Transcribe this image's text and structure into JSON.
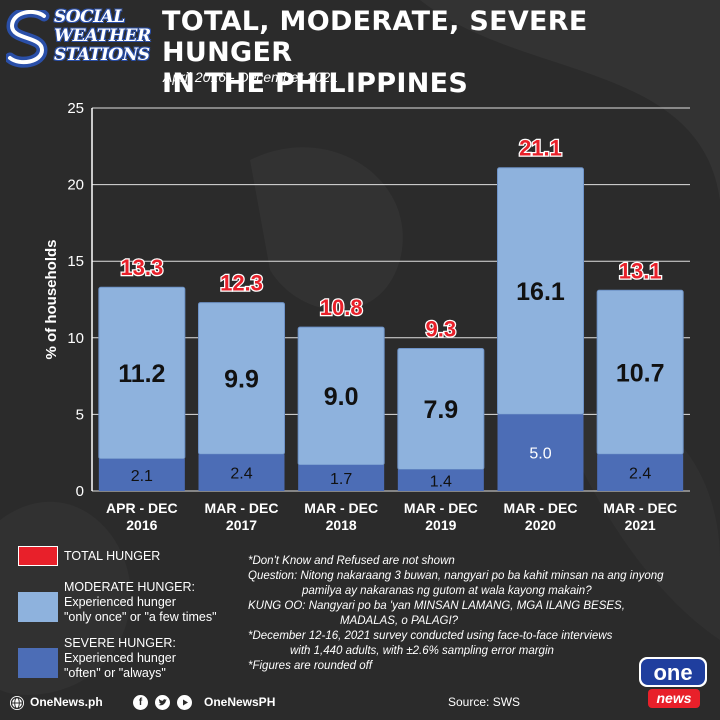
{
  "header": {
    "logo_lines": [
      "SOCIAL",
      "WEATHER",
      "STATIONS"
    ],
    "title_line1": "TOTAL, MODERATE, SEVERE HUNGER",
    "title_line2": "IN THE PHILIPPINES",
    "subtitle": "April 2016 - December 2021"
  },
  "colors": {
    "total": "#e8202a",
    "moderate": "#8eb2dd",
    "severe": "#4c6db6",
    "background": "#2b2b2b",
    "grid": "#ffffff"
  },
  "chart_data": {
    "type": "bar",
    "stacked": true,
    "categories": [
      [
        "APR - DEC",
        "2016"
      ],
      [
        "MAR - DEC",
        "2017"
      ],
      [
        "MAR - DEC",
        "2018"
      ],
      [
        "MAR - DEC",
        "2019"
      ],
      [
        "MAR - DEC",
        "2020"
      ],
      [
        "MAR - DEC",
        "2021"
      ]
    ],
    "series": [
      {
        "name": "SEVERE HUNGER",
        "values": [
          2.1,
          2.4,
          1.7,
          1.4,
          5.0,
          2.4
        ],
        "labels": [
          "2.1",
          "2.4",
          "1.7",
          "1.4",
          "5.0",
          "2.4"
        ]
      },
      {
        "name": "MODERATE HUNGER",
        "values": [
          11.2,
          9.9,
          9.0,
          7.9,
          16.1,
          10.7
        ],
        "labels": [
          "11.2",
          "9.9",
          "9.0",
          "7.9",
          "16.1",
          "10.7"
        ]
      }
    ],
    "totals": [
      "13.3",
      "12.3",
      "10.8",
      "9.3",
      "21.1",
      "13.1"
    ],
    "total_values": [
      13.3,
      12.3,
      10.8,
      9.3,
      21.1,
      13.1
    ],
    "ylabel": "% of households",
    "ylim": [
      0,
      25
    ],
    "yticks": [
      "0",
      "5",
      "10",
      "15",
      "20",
      "25"
    ],
    "grid": true,
    "legend": "bottom-left"
  },
  "legend": {
    "total_label": "TOTAL HUNGER",
    "moderate_lines": [
      "MODERATE HUNGER:",
      "Experienced hunger",
      "\"only once\" or \"a few times\""
    ],
    "severe_lines": [
      "SEVERE HUNGER:",
      "Experienced hunger",
      "\"often\" or \"always\""
    ]
  },
  "notes": [
    "*Don't Know and Refused are not shown",
    "Question: Nitong nakaraang 3 buwan, nangyari po ba kahit minsan na ang inyong",
    "pamilya ay nakaranas ng gutom at wala kayong makain?",
    "KUNG OO: Nangyari po ba 'yan MINSAN LAMANG, MGA ILANG BESES,",
    "MADALAS, o PALAGI?",
    "*December 12-16, 2021 survey conducted using face-to-face interviews",
    "with 1,440 adults, with ±2.6% sampling error margin",
    "*Figures are rounded off"
  ],
  "footer": {
    "site": "OneNews.ph",
    "handle": "OneNewsPH",
    "source": "Source: SWS",
    "icons": [
      "globe-icon",
      "facebook-icon",
      "twitter-icon",
      "youtube-icon"
    ],
    "brand_top": "one",
    "brand_bottom": "news"
  }
}
